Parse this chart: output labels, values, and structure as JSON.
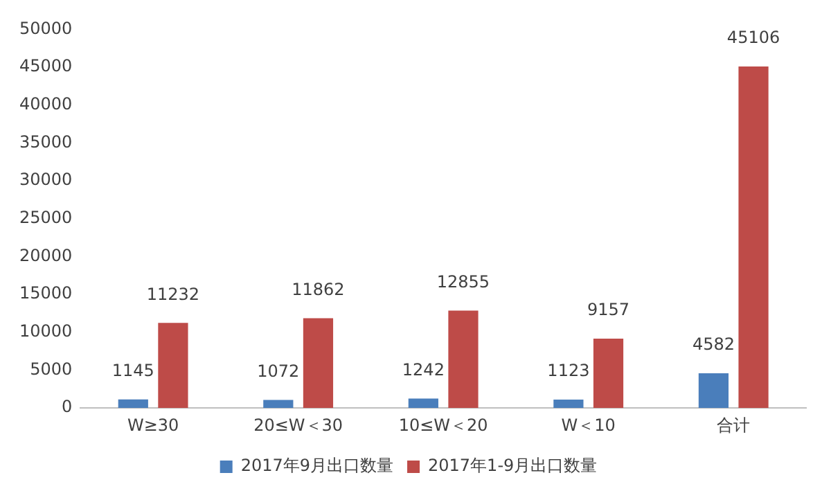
{
  "chart_data": {
    "type": "bar",
    "categories": [
      "W≥30",
      "20≤W＜30",
      "10≤W＜20",
      "W＜10",
      "合计"
    ],
    "series": [
      {
        "name": "2017年9月出口数量",
        "color": "#4a7ebb",
        "values": [
          1145,
          1072,
          1242,
          1123,
          4582
        ]
      },
      {
        "name": "2017年1-9月出口数量",
        "color": "#be4b48",
        "values": [
          11232,
          11862,
          12855,
          9157,
          45106
        ]
      }
    ],
    "ylim": [
      0,
      50000
    ],
    "yticks": [
      0,
      5000,
      10000,
      15000,
      20000,
      25000,
      30000,
      35000,
      40000,
      45000,
      50000
    ],
    "grid": false,
    "legend": "bottom",
    "data_labels": true
  }
}
